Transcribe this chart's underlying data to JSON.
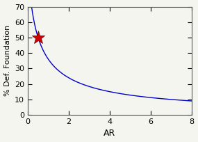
{
  "title": "",
  "xlabel": "AR",
  "ylabel": "% Def. Foundation",
  "xlim": [
    0,
    8
  ],
  "ylim": [
    0,
    70
  ],
  "xticks": [
    0,
    2,
    4,
    6,
    8
  ],
  "yticks": [
    0,
    10,
    20,
    30,
    40,
    50,
    60,
    70
  ],
  "line_color": "#0000cc",
  "star_x": 0.5,
  "star_y": 50,
  "star_color": "#cc0000",
  "background_color": "#f5f5f0",
  "curve_start": 0.18,
  "curve_A": 100,
  "curve_k": 1.333,
  "curve_n": 1.5
}
